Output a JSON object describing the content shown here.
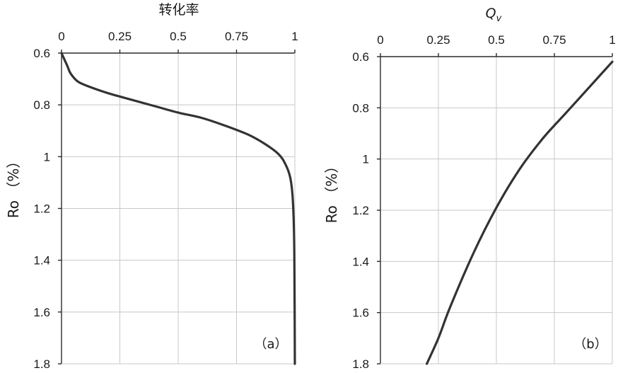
{
  "chart_data": [
    {
      "type": "line",
      "panel_label": "（a）",
      "title": "转化率",
      "xlabel": "",
      "ylabel": "Ro （%）",
      "xlim": [
        0,
        1
      ],
      "ylim": [
        0.6,
        1.8
      ],
      "y_inverted": true,
      "x_axis_position": "top",
      "grid": true,
      "x_ticks": [
        "0",
        "0.25",
        "0.5",
        "0.75",
        "1"
      ],
      "y_ticks": [
        "0.6",
        "0.8",
        "1",
        "1.2",
        "1.4",
        "1.6",
        "1.8"
      ],
      "series": [
        {
          "points": [
            {
              "x": 0.0,
              "y": 0.6
            },
            {
              "x": 0.01,
              "y": 0.62
            },
            {
              "x": 0.025,
              "y": 0.65
            },
            {
              "x": 0.04,
              "y": 0.68
            },
            {
              "x": 0.07,
              "y": 0.71
            },
            {
              "x": 0.12,
              "y": 0.73
            },
            {
              "x": 0.2,
              "y": 0.755
            },
            {
              "x": 0.3,
              "y": 0.78
            },
            {
              "x": 0.4,
              "y": 0.805
            },
            {
              "x": 0.5,
              "y": 0.83
            },
            {
              "x": 0.6,
              "y": 0.85
            },
            {
              "x": 0.7,
              "y": 0.88
            },
            {
              "x": 0.8,
              "y": 0.915
            },
            {
              "x": 0.87,
              "y": 0.95
            },
            {
              "x": 0.93,
              "y": 0.99
            },
            {
              "x": 0.96,
              "y": 1.03
            },
            {
              "x": 0.98,
              "y": 1.08
            },
            {
              "x": 0.99,
              "y": 1.15
            },
            {
              "x": 0.995,
              "y": 1.25
            },
            {
              "x": 0.998,
              "y": 1.4
            },
            {
              "x": 1.0,
              "y": 1.8
            }
          ]
        }
      ]
    },
    {
      "type": "line",
      "panel_label": "（b）",
      "title": "Q",
      "title_subscript": "v",
      "xlabel": "",
      "ylabel": "Ro （%）",
      "xlim": [
        0,
        1
      ],
      "ylim": [
        0.6,
        1.8
      ],
      "y_inverted": true,
      "x_axis_position": "top",
      "grid": true,
      "x_ticks": [
        "0",
        "0.25",
        "0.5",
        "0.75",
        "1"
      ],
      "y_ticks": [
        "0.6",
        "0.8",
        "1",
        "1.2",
        "1.4",
        "1.6",
        "1.8"
      ],
      "series": [
        {
          "points": [
            {
              "x": 1.0,
              "y": 0.62
            },
            {
              "x": 0.9,
              "y": 0.72
            },
            {
              "x": 0.8,
              "y": 0.82
            },
            {
              "x": 0.7,
              "y": 0.92
            },
            {
              "x": 0.6,
              "y": 1.04
            },
            {
              "x": 0.5,
              "y": 1.19
            },
            {
              "x": 0.4,
              "y": 1.37
            },
            {
              "x": 0.3,
              "y": 1.58
            },
            {
              "x": 0.25,
              "y": 1.7
            },
            {
              "x": 0.2,
              "y": 1.8
            }
          ]
        }
      ]
    }
  ]
}
